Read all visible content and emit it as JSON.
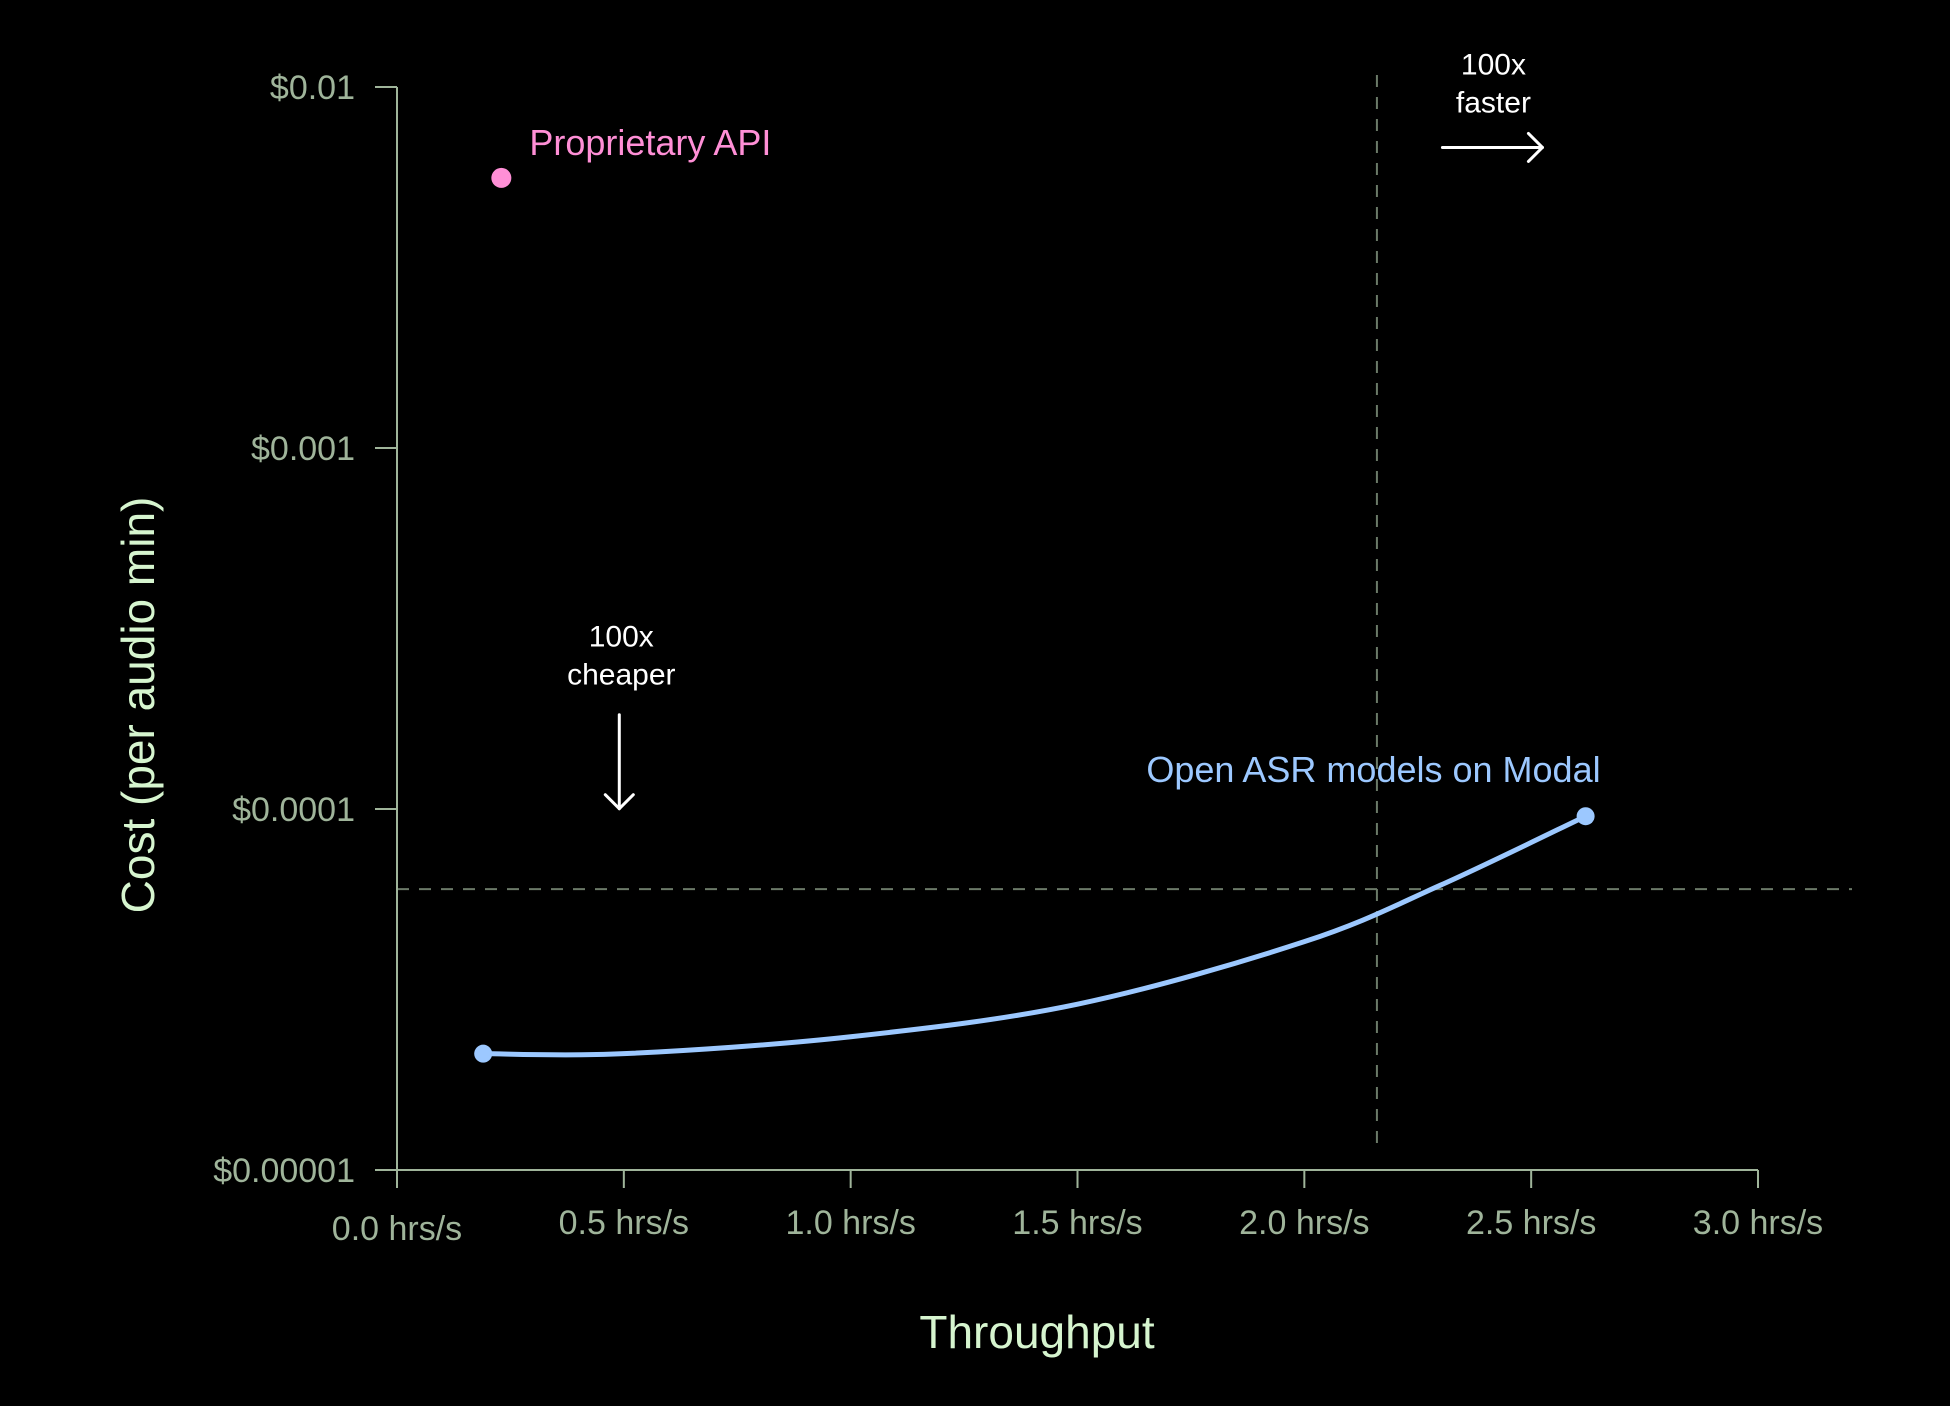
{
  "chart_data": {
    "type": "scatter",
    "xlabel": "Throughput",
    "ylabel": "Cost (per audio min)",
    "x_scale": "linear",
    "y_scale": "log",
    "xlim": [
      0.0,
      3.0
    ],
    "ylim": [
      1e-05,
      0.01
    ],
    "x_ticks": [
      {
        "value": 0.0,
        "label": "0.0 hrs/s"
      },
      {
        "value": 0.5,
        "label": "0.5 hrs/s"
      },
      {
        "value": 1.0,
        "label": "1.0 hrs/s"
      },
      {
        "value": 1.5,
        "label": "1.5 hrs/s"
      },
      {
        "value": 2.0,
        "label": "2.0 hrs/s"
      },
      {
        "value": 2.5,
        "label": "2.5 hrs/s"
      },
      {
        "value": 3.0,
        "label": "3.0 hrs/s"
      }
    ],
    "y_ticks": [
      {
        "value": 1e-05,
        "label": "$0.00001"
      },
      {
        "value": 0.0001,
        "label": "$0.0001"
      },
      {
        "value": 0.001,
        "label": "$0.001"
      },
      {
        "value": 0.01,
        "label": "$0.01"
      }
    ],
    "grid": false,
    "series": [
      {
        "name": "Proprietary API",
        "color": "#ff8fd6",
        "kind": "point",
        "points": [
          {
            "x": 0.23,
            "y": 0.0056
          }
        ]
      },
      {
        "name": "Open ASR models on Modal",
        "color": "#9cc8ff",
        "kind": "curve",
        "points": [
          {
            "x": 0.19,
            "y": 2.1e-05
          },
          {
            "x": 0.5,
            "y": 2.1e-05
          },
          {
            "x": 1.0,
            "y": 2.34e-05
          },
          {
            "x": 1.5,
            "y": 2.88e-05
          },
          {
            "x": 2.0,
            "y": 4.29e-05
          },
          {
            "x": 2.3,
            "y": 6.15e-05
          },
          {
            "x": 2.62,
            "y": 9.55e-05
          }
        ]
      }
    ],
    "reference_lines": [
      {
        "orientation": "horizontal",
        "value": 6e-05,
        "style": "dashed"
      },
      {
        "orientation": "vertical",
        "value": 2.16,
        "style": "dashed"
      }
    ],
    "annotations": [
      {
        "line1": "100x",
        "line2": "cheaper",
        "arrow": "down",
        "x": 0.49,
        "y": 0.000145
      },
      {
        "line1": "100x",
        "line2": "faster",
        "arrow": "right",
        "x": 2.3,
        "y": 0.0068
      }
    ],
    "colors": {
      "background": "#000000",
      "axis": "#9fb49a",
      "tick_label": "#9fb49a",
      "axis_title": "#d6f5cf",
      "reference_line": "#6b7a68",
      "annotation": "#ffffff"
    }
  }
}
